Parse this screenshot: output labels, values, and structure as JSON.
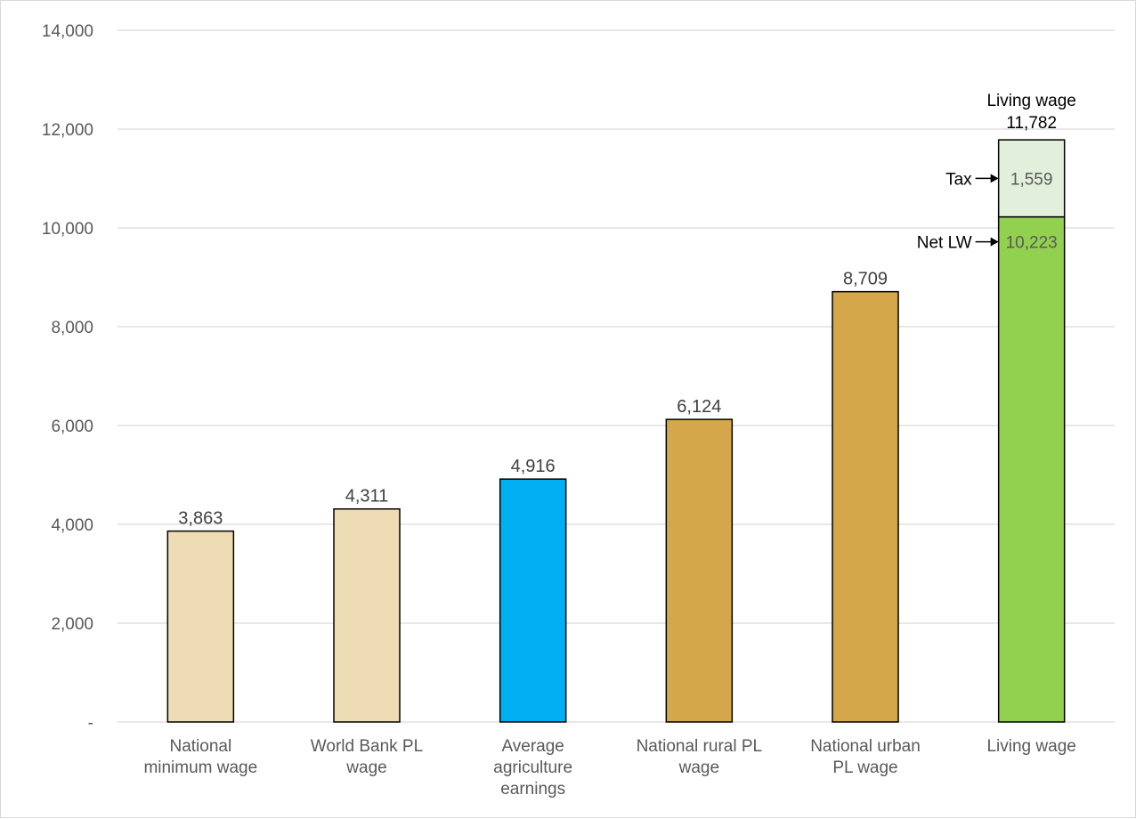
{
  "chart_data": {
    "type": "bar",
    "categories": [
      [
        "National",
        "minimum wage"
      ],
      [
        "World Bank PL",
        "wage"
      ],
      [
        "Average",
        "agriculture",
        "earnings"
      ],
      [
        "National rural PL",
        "wage"
      ],
      [
        "National urban",
        "PL wage"
      ],
      [
        "Living wage"
      ]
    ],
    "values": [
      3863,
      4311,
      4916,
      6124,
      8709,
      11782
    ],
    "value_labels": [
      "3,863",
      "4,311",
      "4,916",
      "6,124",
      "8,709",
      "11,782"
    ],
    "bar_colors": [
      "#eedcb4",
      "#eedcb4",
      "#00b0f0",
      "#d4a84a",
      "#d4a84a",
      "#92d050"
    ],
    "stacked_last": {
      "segments": [
        {
          "name": "Net LW",
          "value": 10223,
          "label": "10,223",
          "color": "#92d050"
        },
        {
          "name": "Tax",
          "value": 1559,
          "label": "1,559",
          "color": "#e2efda"
        }
      ],
      "total_label_line1": "Living wage",
      "total_label_line2": "11,782"
    },
    "ylim": [
      0,
      14000
    ],
    "yticks": [
      0,
      2000,
      4000,
      6000,
      8000,
      10000,
      12000,
      14000
    ],
    "ytick_labels": [
      "-",
      "2,000",
      "4,000",
      "6,000",
      "8,000",
      "10,000",
      "12,000",
      "14,000"
    ],
    "grid": true,
    "title": "",
    "xlabel": "",
    "ylabel": ""
  }
}
